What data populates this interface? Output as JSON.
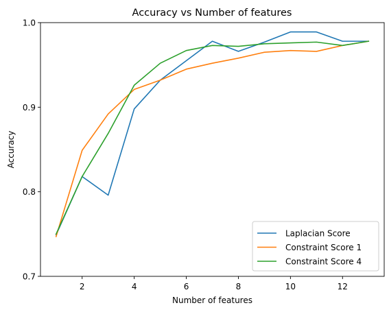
{
  "chart_data": {
    "type": "line",
    "title": "Accuracy vs Number of features",
    "xlabel": "Number of features",
    "ylabel": "Accuracy",
    "xlim": [
      0.4,
      13.6
    ],
    "ylim": [
      0.7,
      1.0
    ],
    "xticks": [
      2,
      4,
      6,
      8,
      10,
      12
    ],
    "yticks": [
      0.7,
      0.8,
      0.9,
      1.0
    ],
    "xtick_labels": [
      "2",
      "4",
      "6",
      "8",
      "10",
      "12"
    ],
    "ytick_labels": [
      "0.7",
      "0.8",
      "0.9",
      "1.0"
    ],
    "grid": false,
    "legend_position": "lower-right",
    "x": [
      1,
      2,
      3,
      4,
      5,
      6,
      7,
      8,
      9,
      10,
      11,
      12,
      13
    ],
    "series": [
      {
        "name": "Laplacian Score",
        "color": "#1f77b4",
        "values": [
          0.749,
          0.818,
          0.796,
          0.898,
          0.932,
          0.955,
          0.978,
          0.966,
          0.977,
          0.989,
          0.989,
          0.978,
          0.978
        ]
      },
      {
        "name": "Constraint Score 1",
        "color": "#ff7f0e",
        "values": [
          0.747,
          0.849,
          0.892,
          0.921,
          0.932,
          0.945,
          0.952,
          0.958,
          0.965,
          0.967,
          0.966,
          0.973,
          0.978
        ]
      },
      {
        "name": "Constraint Score 4",
        "color": "#2ca02c",
        "values": [
          0.75,
          0.818,
          0.869,
          0.926,
          0.952,
          0.967,
          0.973,
          0.972,
          0.975,
          0.976,
          0.977,
          0.973,
          0.978
        ]
      }
    ]
  }
}
